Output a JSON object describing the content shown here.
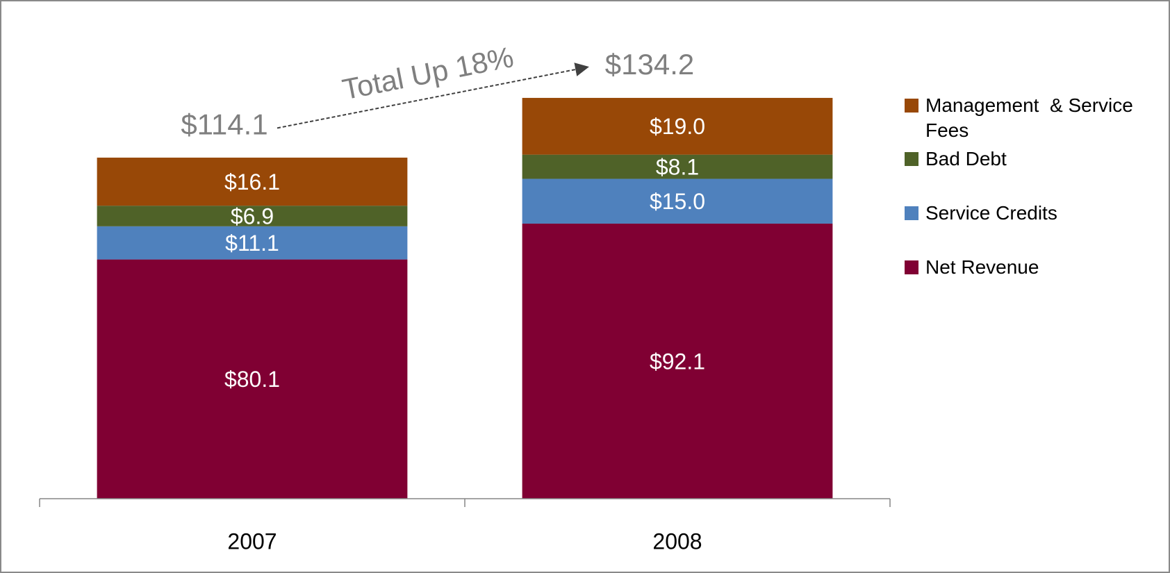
{
  "chart_data": {
    "type": "stacked_bar",
    "categories": [
      "2007",
      "2008"
    ],
    "series": [
      {
        "name": "Net Revenue",
        "color": "#800033",
        "values": [
          80.1,
          92.1
        ],
        "value_labels": [
          "$80.1",
          "$92.1"
        ]
      },
      {
        "name": "Service Credits",
        "color": "#4f81bd",
        "values": [
          11.1,
          15.0
        ],
        "value_labels": [
          "$11.1",
          "$15.0"
        ]
      },
      {
        "name": "Bad Debt",
        "color": "#4f6228",
        "values": [
          6.9,
          8.1
        ],
        "value_labels": [
          "$6.9",
          "$8.1"
        ]
      },
      {
        "name": "Management  & Service Fees",
        "color": "#984807",
        "values": [
          16.1,
          19.0
        ],
        "value_labels": [
          "$16.1",
          "$19.0"
        ]
      }
    ],
    "totals": [
      114.1,
      134.2
    ],
    "total_labels": [
      "$114.1",
      "$134.2"
    ],
    "annotation": "Total Up 18%",
    "ylim": [
      0,
      160
    ],
    "legend": "right"
  }
}
